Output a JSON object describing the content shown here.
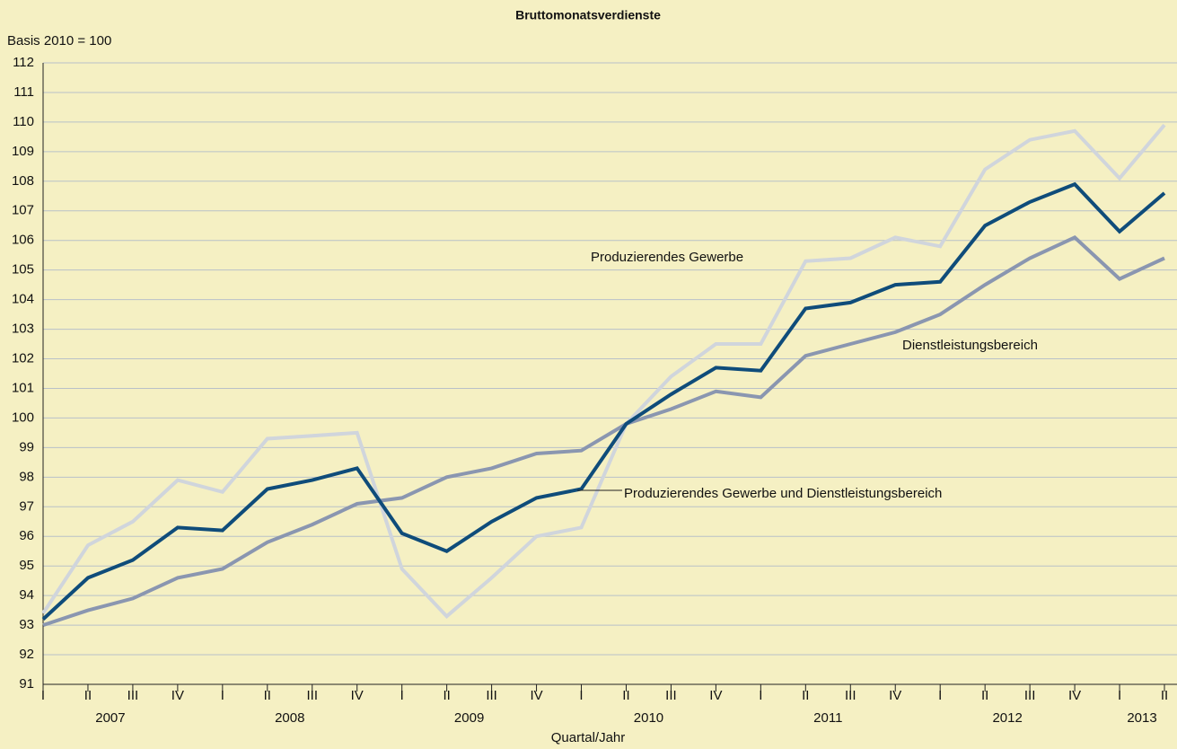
{
  "chart_data": {
    "type": "line",
    "title": "Bruttomonatsverdienste",
    "y_axis_label": "Basis 2010 = 100",
    "x_axis_label": "Quartal/Jahr",
    "categories": [
      "I",
      "II",
      "III",
      "IV",
      "I",
      "II",
      "III",
      "IV",
      "I",
      "II",
      "III",
      "IV",
      "I",
      "II",
      "III",
      "IV",
      "I",
      "II",
      "III",
      "IV",
      "I",
      "II",
      "III",
      "IV",
      "I",
      "II"
    ],
    "years": [
      "2007",
      "2008",
      "2009",
      "2010",
      "2011",
      "2012",
      "2013"
    ],
    "ylim": [
      91,
      112
    ],
    "yticks": [
      91,
      92,
      93,
      94,
      95,
      96,
      97,
      98,
      99,
      100,
      101,
      102,
      103,
      104,
      105,
      106,
      107,
      108,
      109,
      110,
      111,
      112
    ],
    "grid": true,
    "series": [
      {
        "name": "Produzierendes Gewerbe",
        "color": "#d0d5dc",
        "values": [
          93.4,
          95.7,
          96.5,
          97.9,
          97.5,
          99.3,
          99.4,
          99.5,
          94.9,
          93.3,
          94.6,
          96.0,
          96.3,
          99.8,
          101.4,
          102.5,
          102.5,
          105.3,
          105.4,
          106.1,
          105.8,
          108.4,
          109.4,
          109.7,
          108.1,
          109.9
        ]
      },
      {
        "name": "Dienstleistungsbereich",
        "color": "#8a96b0",
        "values": [
          93.0,
          93.5,
          93.9,
          94.6,
          94.9,
          95.8,
          96.4,
          97.1,
          97.3,
          98.0,
          98.3,
          98.8,
          98.9,
          99.8,
          100.3,
          100.9,
          100.7,
          102.1,
          102.5,
          102.9,
          103.5,
          104.5,
          105.4,
          106.1,
          104.7,
          105.4
        ]
      },
      {
        "name": "Produzierendes Gewerbe und Dienstleistungsbereich",
        "color": "#0f4c7a",
        "values": [
          93.2,
          94.6,
          95.2,
          96.3,
          96.2,
          97.6,
          97.9,
          98.3,
          96.1,
          95.5,
          96.5,
          97.3,
          97.6,
          99.8,
          100.8,
          101.7,
          101.6,
          103.7,
          103.9,
          104.5,
          104.6,
          106.5,
          107.3,
          107.9,
          106.3,
          107.6
        ]
      }
    ]
  }
}
